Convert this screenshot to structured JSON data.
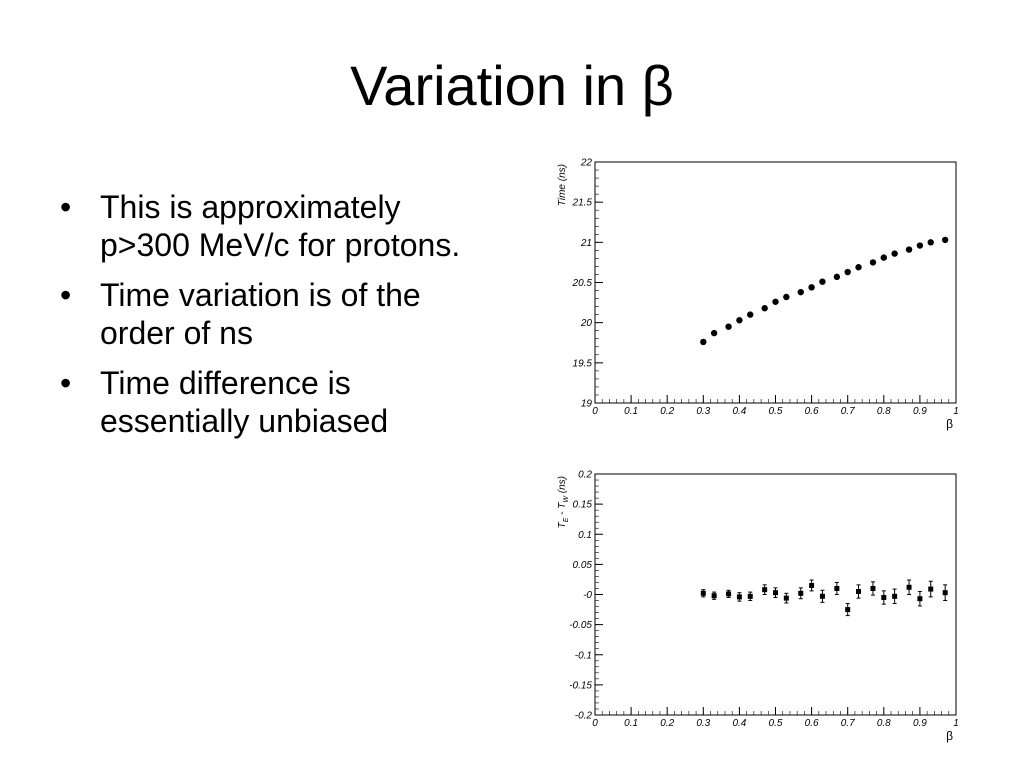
{
  "slide": {
    "title": "Variation in β",
    "bullets": [
      "This is approximately p>300 MeV/c for protons.",
      "Time variation is of the order of ns",
      "Time difference is essentially unbiased"
    ]
  },
  "chart_data": [
    {
      "type": "scatter",
      "title": "",
      "xlabel": "β",
      "ylabel": "Time  (ns)",
      "xlim": [
        0,
        1
      ],
      "ylim": [
        19,
        22
      ],
      "xticks": [
        0,
        0.1,
        0.2,
        0.3,
        0.4,
        0.5,
        0.6,
        0.7,
        0.8,
        0.9,
        1
      ],
      "xtick_labels": [
        "0",
        "0.1",
        "0.2",
        "0.3",
        "0.4",
        "0.5",
        "0.6",
        "0.7",
        "0.8",
        "0.9",
        "1"
      ],
      "yticks": [
        19,
        19.5,
        20,
        20.5,
        21,
        21.5,
        22
      ],
      "ytick_labels": [
        "19",
        "19.5",
        "20",
        "20.5",
        "21",
        "21.5",
        "22"
      ],
      "grid": false,
      "series": [
        {
          "x": [
            0.3,
            0.33,
            0.37,
            0.4,
            0.43,
            0.47,
            0.5,
            0.53,
            0.57,
            0.6,
            0.63,
            0.67,
            0.7,
            0.73,
            0.77,
            0.8,
            0.83,
            0.87,
            0.9,
            0.93,
            0.97
          ],
          "y": [
            19.76,
            19.87,
            19.95,
            20.03,
            20.1,
            20.18,
            20.26,
            20.32,
            20.38,
            20.44,
            20.51,
            20.57,
            20.63,
            20.69,
            20.75,
            20.81,
            20.86,
            20.91,
            20.96,
            21.0,
            21.03
          ],
          "color": "#000000"
        }
      ]
    },
    {
      "type": "scatter",
      "title": "",
      "xlabel": "β",
      "ylabel": "T_E - T_W  (ns)",
      "xlim": [
        0,
        1
      ],
      "ylim": [
        -0.2,
        0.2
      ],
      "xticks": [
        0,
        0.1,
        0.2,
        0.3,
        0.4,
        0.5,
        0.6,
        0.7,
        0.8,
        0.9,
        1
      ],
      "xtick_labels": [
        "0",
        "0.1",
        "0.2",
        "0.3",
        "0.4",
        "0.5",
        "0.6",
        "0.7",
        "0.8",
        "0.9",
        "1"
      ],
      "yticks": [
        -0.2,
        -0.15,
        -0.1,
        -0.05,
        0,
        0.05,
        0.1,
        0.15,
        0.2
      ],
      "ytick_labels": [
        "-0.2",
        "-0.15",
        "-0.1",
        "-0.05",
        "-0",
        "0.05",
        "0.1",
        "0.15",
        "0.2"
      ],
      "grid": false,
      "series": [
        {
          "x": [
            0.3,
            0.33,
            0.37,
            0.4,
            0.43,
            0.47,
            0.5,
            0.53,
            0.57,
            0.6,
            0.63,
            0.67,
            0.7,
            0.73,
            0.77,
            0.8,
            0.83,
            0.87,
            0.9,
            0.93,
            0.97
          ],
          "y": [
            0.002,
            -0.002,
            0.001,
            -0.004,
            -0.003,
            0.008,
            0.003,
            -0.006,
            0.002,
            0.015,
            -0.003,
            0.01,
            -0.025,
            0.005,
            0.01,
            -0.005,
            -0.003,
            0.012,
            -0.007,
            0.009,
            0.003
          ],
          "err": [
            0.006,
            0.006,
            0.006,
            0.007,
            0.007,
            0.008,
            0.008,
            0.008,
            0.009,
            0.009,
            0.01,
            0.01,
            0.01,
            0.011,
            0.011,
            0.011,
            0.012,
            0.012,
            0.012,
            0.013,
            0.013
          ],
          "color": "#000000"
        }
      ]
    }
  ]
}
